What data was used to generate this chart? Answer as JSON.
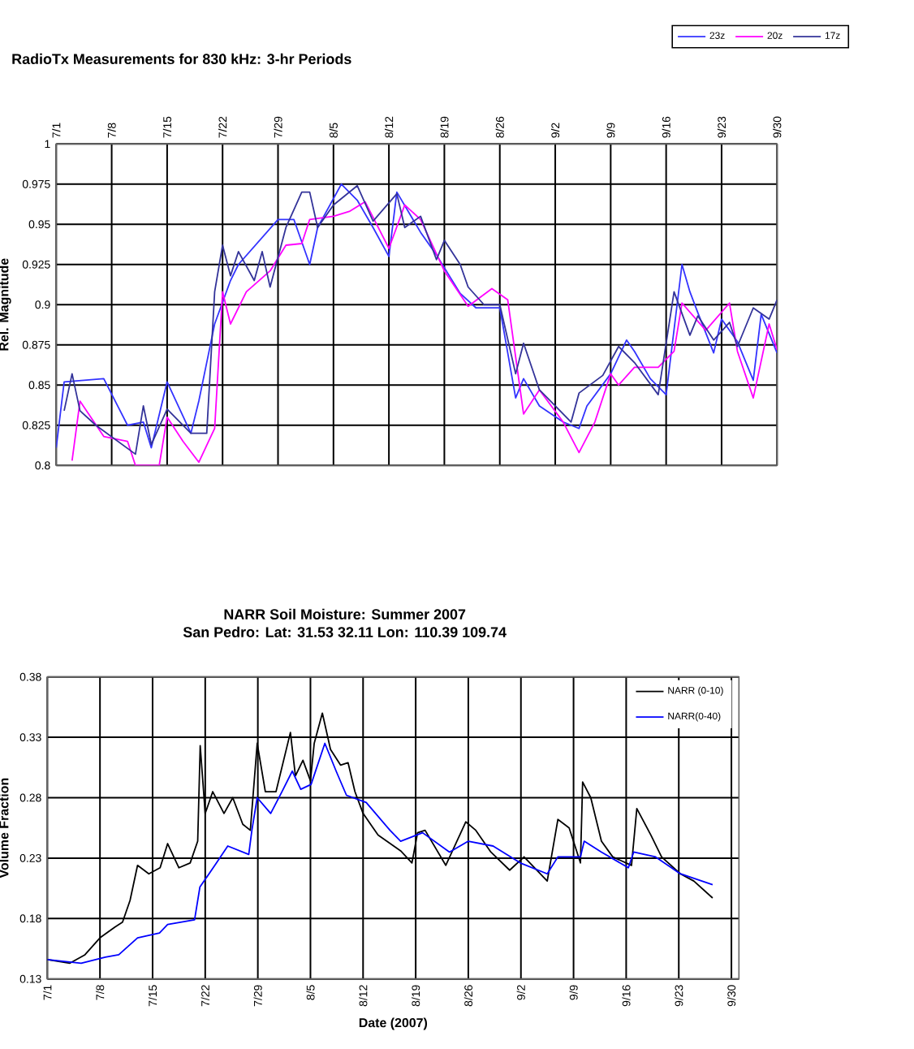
{
  "chart_data": [
    {
      "type": "line",
      "title": "RadioTx Measurements for 830 kHz: 3-hr Periods",
      "ylabel": "Rel. Magnitude",
      "xlim": [
        "2007-07-01",
        "2007-09-30"
      ],
      "xticks": [
        {
          "value": "2007-07-01",
          "label": "7/1"
        },
        {
          "value": "2007-07-08",
          "label": "7/8"
        },
        {
          "value": "2007-07-15",
          "label": "7/15"
        },
        {
          "value": "2007-07-22",
          "label": "7/22"
        },
        {
          "value": "2007-07-29",
          "label": "7/29"
        },
        {
          "value": "2007-08-05",
          "label": "8/5"
        },
        {
          "value": "2007-08-12",
          "label": "8/12"
        },
        {
          "value": "2007-08-19",
          "label": "8/19"
        },
        {
          "value": "2007-08-26",
          "label": "8/26"
        },
        {
          "value": "2007-09-02",
          "label": "9/2"
        },
        {
          "value": "2007-09-09",
          "label": "9/9"
        },
        {
          "value": "2007-09-16",
          "label": "9/16"
        },
        {
          "value": "2007-09-23",
          "label": "9/23"
        },
        {
          "value": "2007-09-30",
          "label": "9/30"
        }
      ],
      "ylim": [
        0.8,
        1
      ],
      "yticks": [
        0.8,
        0.825,
        0.85,
        0.875,
        0.9,
        0.925,
        0.95,
        0.975,
        1
      ],
      "grid": true,
      "legend": "top right",
      "series": [
        {
          "name": "23z",
          "color": "#3333ff",
          "x": [
            "2007-07-01",
            "2007-07-02",
            "2007-07-07",
            "2007-07-10",
            "2007-07-12",
            "2007-07-13",
            "2007-07-15",
            "2007-07-18",
            "2007-07-19",
            "2007-07-21",
            "2007-07-23",
            "2007-07-24",
            "2007-07-29",
            "2007-07-31",
            "2007-08-02",
            "2007-08-03",
            "2007-08-06",
            "2007-08-08",
            "2007-08-10",
            "2007-08-12",
            "2007-08-13",
            "2007-08-16",
            "2007-08-18",
            "2007-08-21",
            "2007-08-23",
            "2007-08-26",
            "2007-08-28",
            "2007-08-29",
            "2007-08-31",
            "2007-09-03",
            "2007-09-05",
            "2007-09-06",
            "2007-09-09",
            "2007-09-11",
            "2007-09-12",
            "2007-09-14",
            "2007-09-16",
            "2007-09-18",
            "2007-09-19",
            "2007-09-20",
            "2007-09-22",
            "2007-09-23",
            "2007-09-25",
            "2007-09-27",
            "2007-09-28",
            "2007-09-30"
          ],
          "values": [
            0.811,
            0.852,
            0.854,
            0.825,
            0.827,
            0.811,
            0.852,
            0.82,
            0.84,
            0.888,
            0.915,
            0.925,
            0.953,
            0.953,
            0.925,
            0.948,
            0.975,
            0.965,
            0.948,
            0.93,
            0.97,
            0.945,
            0.931,
            0.907,
            0.898,
            0.898,
            0.842,
            0.854,
            0.837,
            0.827,
            0.823,
            0.837,
            0.857,
            0.878,
            0.871,
            0.854,
            0.844,
            0.925,
            0.908,
            0.895,
            0.87,
            0.891,
            0.877,
            0.853,
            0.894,
            0.87
          ]
        },
        {
          "name": "20z",
          "color": "#ff00ff",
          "x": [
            "2007-07-03",
            "2007-07-04",
            "2007-07-07",
            "2007-07-10",
            "2007-07-11",
            "2007-07-14",
            "2007-07-15",
            "2007-07-17",
            "2007-07-19",
            "2007-07-21",
            "2007-07-22",
            "2007-07-23",
            "2007-07-25",
            "2007-07-28",
            "2007-07-30",
            "2007-08-01",
            "2007-08-02",
            "2007-08-05",
            "2007-08-07",
            "2007-08-09",
            "2007-08-12",
            "2007-08-14",
            "2007-08-16",
            "2007-08-19",
            "2007-08-22",
            "2007-08-25",
            "2007-08-27",
            "2007-08-29",
            "2007-08-31",
            "2007-09-03",
            "2007-09-05",
            "2007-09-07",
            "2007-09-09",
            "2007-09-10",
            "2007-09-12",
            "2007-09-15",
            "2007-09-17",
            "2007-09-18",
            "2007-09-21",
            "2007-09-24",
            "2007-09-25",
            "2007-09-27",
            "2007-09-29",
            "2007-09-30"
          ],
          "values": [
            0.803,
            0.84,
            0.818,
            0.815,
            0.8,
            0.8,
            0.83,
            0.815,
            0.802,
            0.823,
            0.908,
            0.888,
            0.908,
            0.921,
            0.937,
            0.938,
            0.953,
            0.955,
            0.958,
            0.964,
            0.935,
            0.962,
            0.953,
            0.921,
            0.899,
            0.91,
            0.903,
            0.832,
            0.847,
            0.827,
            0.808,
            0.827,
            0.857,
            0.85,
            0.861,
            0.861,
            0.871,
            0.901,
            0.884,
            0.901,
            0.871,
            0.842,
            0.888,
            0.872
          ]
        },
        {
          "name": "17z",
          "color": "#333399",
          "x": [
            "2007-07-02",
            "2007-07-03",
            "2007-07-04",
            "2007-07-06",
            "2007-07-11",
            "2007-07-12",
            "2007-07-13",
            "2007-07-15",
            "2007-07-18",
            "2007-07-20",
            "2007-07-21",
            "2007-07-22",
            "2007-07-23",
            "2007-07-24",
            "2007-07-26",
            "2007-07-27",
            "2007-07-28",
            "2007-07-30",
            "2007-08-01",
            "2007-08-02",
            "2007-08-03",
            "2007-08-05",
            "2007-08-08",
            "2007-08-10",
            "2007-08-13",
            "2007-08-14",
            "2007-08-16",
            "2007-08-18",
            "2007-08-19",
            "2007-08-21",
            "2007-08-22",
            "2007-08-24",
            "2007-08-26",
            "2007-08-28",
            "2007-08-29",
            "2007-08-31",
            "2007-09-02",
            "2007-09-04",
            "2007-09-05",
            "2007-09-08",
            "2007-09-10",
            "2007-09-12",
            "2007-09-15",
            "2007-09-17",
            "2007-09-19",
            "2007-09-20",
            "2007-09-22",
            "2007-09-24",
            "2007-09-25",
            "2007-09-27",
            "2007-09-29",
            "2007-09-30"
          ],
          "values": [
            0.834,
            0.857,
            0.834,
            0.825,
            0.807,
            0.837,
            0.813,
            0.835,
            0.82,
            0.82,
            0.908,
            0.937,
            0.918,
            0.933,
            0.915,
            0.933,
            0.911,
            0.948,
            0.97,
            0.97,
            0.948,
            0.962,
            0.974,
            0.952,
            0.969,
            0.948,
            0.955,
            0.928,
            0.94,
            0.925,
            0.911,
            0.9,
            0.9,
            0.857,
            0.876,
            0.847,
            0.837,
            0.827,
            0.845,
            0.856,
            0.874,
            0.864,
            0.844,
            0.908,
            0.881,
            0.893,
            0.878,
            0.889,
            0.874,
            0.898,
            0.891,
            0.903
          ]
        }
      ]
    },
    {
      "type": "line",
      "title": "NARR Soil Moisture: Summer 2007",
      "subtitle": "San Pedro: Lat: 31.53 32.11 Lon: 110.39 109.74",
      "xlabel": "Date (2007)",
      "ylabel": "Volume Fraction",
      "xlim": [
        "2007-07-01",
        "2007-10-01"
      ],
      "xticks": [
        {
          "value": "2007-07-01",
          "label": "7/1"
        },
        {
          "value": "2007-07-08",
          "label": "7/8"
        },
        {
          "value": "2007-07-15",
          "label": "7/15"
        },
        {
          "value": "2007-07-22",
          "label": "7/22"
        },
        {
          "value": "2007-07-29",
          "label": "7/29"
        },
        {
          "value": "2007-08-05",
          "label": "8/5"
        },
        {
          "value": "2007-08-12",
          "label": "8/12"
        },
        {
          "value": "2007-08-19",
          "label": "8/19"
        },
        {
          "value": "2007-08-26",
          "label": "8/26"
        },
        {
          "value": "2007-09-02",
          "label": "9/2"
        },
        {
          "value": "2007-09-09",
          "label": "9/9"
        },
        {
          "value": "2007-09-16",
          "label": "9/16"
        },
        {
          "value": "2007-09-23",
          "label": "9/23"
        },
        {
          "value": "2007-09-30",
          "label": "9/30"
        }
      ],
      "ylim": [
        0.13,
        0.38
      ],
      "yticks": [
        0.13,
        0.18,
        0.23,
        0.28,
        0.33,
        0.38
      ],
      "grid": true,
      "legend": "top right",
      "series": [
        {
          "name": "NARR (0-10)",
          "color": "#000000",
          "x": [
            "2007-07-01",
            "2007-07-04",
            "2007-07-06",
            "2007-07-08",
            "2007-07-10",
            "2007-07-11",
            "2007-07-12",
            "2007-07-13",
            "2007-07-14T12:00",
            "2007-07-16",
            "2007-07-17",
            "2007-07-18T12:00",
            "2007-07-20",
            "2007-07-21",
            "2007-07-21T08:00",
            "2007-07-22",
            "2007-07-23",
            "2007-07-24T12:00",
            "2007-07-25T16:00",
            "2007-07-27",
            "2007-07-28",
            "2007-07-28T22:00",
            "2007-07-30",
            "2007-07-31T10:00",
            "2007-08-02T08:00",
            "2007-08-03",
            "2007-08-04",
            "2007-08-05",
            "2007-08-05T12:00",
            "2007-08-06T14:00",
            "2007-08-07T16:00",
            "2007-08-09",
            "2007-08-10",
            "2007-08-10T22:00",
            "2007-08-12",
            "2007-08-14",
            "2007-08-17",
            "2007-08-18T12:00",
            "2007-08-19T06:00",
            "2007-08-20T06:00",
            "2007-08-23",
            "2007-08-25T16:00",
            "2007-08-27",
            "2007-08-29",
            "2007-08-31T12:00",
            "2007-09-02T10:00",
            "2007-09-05T12:00",
            "2007-09-06T22:00",
            "2007-09-08T10:00",
            "2007-09-09T22:00",
            "2007-09-10T05:00",
            "2007-09-11T07:00",
            "2007-09-12T17:00",
            "2007-09-14T05:00",
            "2007-09-16T17:00",
            "2007-09-17T10:00",
            "2007-09-19T07:00",
            "2007-09-20T17:00",
            "2007-09-23T05:00",
            "2007-09-25",
            "2007-09-27T12:00"
          ],
          "values": [
            0.146,
            0.143,
            0.15,
            0.164,
            0.173,
            0.177,
            0.195,
            0.224,
            0.217,
            0.222,
            0.242,
            0.222,
            0.226,
            0.244,
            0.323,
            0.267,
            0.285,
            0.267,
            0.28,
            0.258,
            0.253,
            0.325,
            0.285,
            0.285,
            0.334,
            0.298,
            0.311,
            0.294,
            0.325,
            0.35,
            0.32,
            0.307,
            0.309,
            0.285,
            0.267,
            0.249,
            0.236,
            0.226,
            0.251,
            0.253,
            0.224,
            0.26,
            0.253,
            0.235,
            0.22,
            0.231,
            0.211,
            0.262,
            0.255,
            0.226,
            0.293,
            0.28,
            0.244,
            0.231,
            0.224,
            0.271,
            0.249,
            0.231,
            0.217,
            0.211,
            0.197
          ]
        },
        {
          "name": "NARR(0-40)",
          "color": "#0000ff",
          "x": [
            "2007-07-01",
            "2007-07-05T12:00",
            "2007-07-08T17:00",
            "2007-07-10T12:00",
            "2007-07-13",
            "2007-07-15T22:00",
            "2007-07-17",
            "2007-07-20T14:00",
            "2007-07-21T07:00",
            "2007-07-23T12:00",
            "2007-07-25",
            "2007-07-27T19:00",
            "2007-07-28T05:00",
            "2007-07-28T22:00",
            "2007-07-30T17:00",
            "2007-08-01T05:00",
            "2007-08-02T14:00",
            "2007-08-03T17:00",
            "2007-08-05T02:00",
            "2007-08-06T22:00",
            "2007-08-08T10:00",
            "2007-08-09T19:00",
            "2007-08-12T10:00",
            "2007-08-15T14:00",
            "2007-08-17",
            "2007-08-19T22:00",
            "2007-08-23T12:00",
            "2007-08-26",
            "2007-08-29T07:00",
            "2007-09-01T22:00",
            "2007-09-05T12:00",
            "2007-09-06T22:00",
            "2007-09-09T22:00",
            "2007-09-10T10:00",
            "2007-09-12T17:00",
            "2007-09-16T07:00",
            "2007-09-17",
            "2007-09-19T22:00",
            "2007-09-23T05:00",
            "2007-09-27T12:00"
          ],
          "values": [
            0.146,
            0.143,
            0.148,
            0.15,
            0.164,
            0.168,
            0.175,
            0.179,
            0.206,
            0.226,
            0.24,
            0.233,
            0.253,
            0.28,
            0.267,
            0.285,
            0.302,
            0.287,
            0.291,
            0.325,
            0.302,
            0.282,
            0.276,
            0.253,
            0.244,
            0.251,
            0.235,
            0.244,
            0.24,
            0.226,
            0.217,
            0.231,
            0.231,
            0.244,
            0.235,
            0.222,
            0.235,
            0.231,
            0.217,
            0.208
          ]
        }
      ]
    }
  ]
}
